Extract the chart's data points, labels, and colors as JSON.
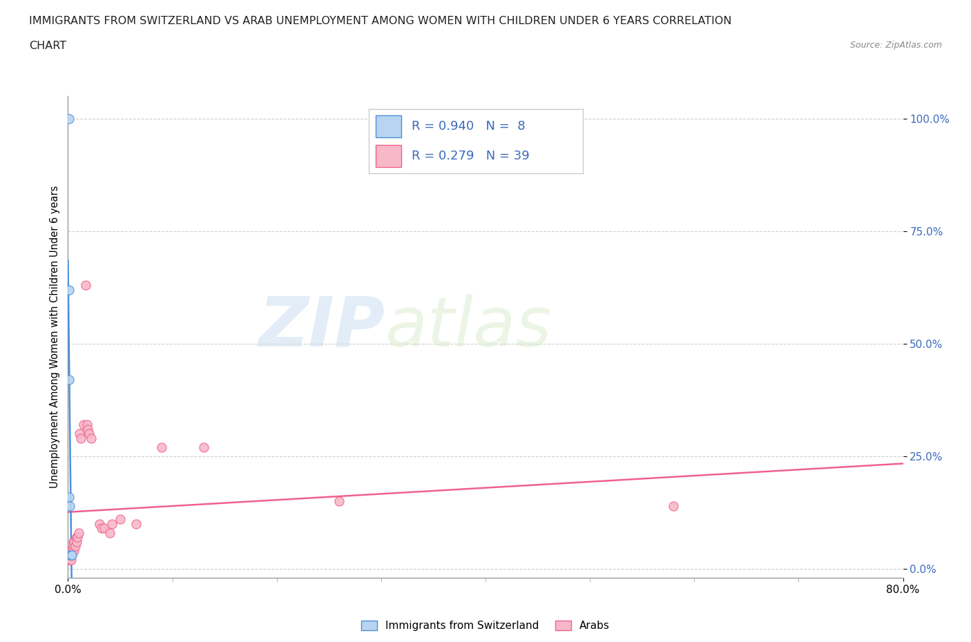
{
  "title_line1": "IMMIGRANTS FROM SWITZERLAND VS ARAB UNEMPLOYMENT AMONG WOMEN WITH CHILDREN UNDER 6 YEARS CORRELATION",
  "title_line2": "CHART",
  "source": "Source: ZipAtlas.com",
  "ylabel": "Unemployment Among Women with Children Under 6 years",
  "ytick_labels": [
    "100.0%",
    "75.0%",
    "50.0%",
    "25.0%",
    "0.0%"
  ],
  "ytick_values": [
    1.0,
    0.75,
    0.5,
    0.25,
    0.0
  ],
  "xlim": [
    0,
    0.8
  ],
  "ylim": [
    -0.02,
    1.05
  ],
  "swiss_R": 0.94,
  "swiss_N": 8,
  "arab_R": 0.279,
  "arab_N": 39,
  "swiss_color": "#b8d4f0",
  "arab_color": "#f8b8c8",
  "swiss_line_color": "#4a90d9",
  "arab_line_color": "#f06090",
  "legend_label_swiss": "Immigrants from Switzerland",
  "legend_label_arab": "Arabs",
  "watermark_zip": "ZIP",
  "watermark_atlas": "atlas",
  "swiss_x": [
    0.001,
    0.001,
    0.001,
    0.001,
    0.002,
    0.002,
    0.003,
    0.004
  ],
  "swiss_y": [
    1.0,
    0.62,
    0.42,
    0.16,
    0.14,
    0.03,
    0.03,
    0.03
  ],
  "arab_x": [
    0.001,
    0.001,
    0.002,
    0.002,
    0.002,
    0.003,
    0.003,
    0.003,
    0.003,
    0.004,
    0.004,
    0.005,
    0.005,
    0.006,
    0.006,
    0.007,
    0.008,
    0.008,
    0.009,
    0.01,
    0.011,
    0.012,
    0.015,
    0.017,
    0.018,
    0.019,
    0.02,
    0.022,
    0.03,
    0.032,
    0.035,
    0.04,
    0.042,
    0.05,
    0.065,
    0.09,
    0.13,
    0.26,
    0.58
  ],
  "arab_y": [
    0.03,
    0.02,
    0.04,
    0.03,
    0.02,
    0.04,
    0.03,
    0.02,
    0.03,
    0.03,
    0.04,
    0.06,
    0.05,
    0.06,
    0.04,
    0.05,
    0.07,
    0.06,
    0.07,
    0.08,
    0.3,
    0.29,
    0.32,
    0.63,
    0.32,
    0.31,
    0.3,
    0.29,
    0.1,
    0.09,
    0.09,
    0.08,
    0.1,
    0.11,
    0.1,
    0.27,
    0.27,
    0.15,
    0.14
  ],
  "background_color": "#ffffff",
  "grid_color": "#bbbbbb",
  "stat_color": "#3a6bbd"
}
